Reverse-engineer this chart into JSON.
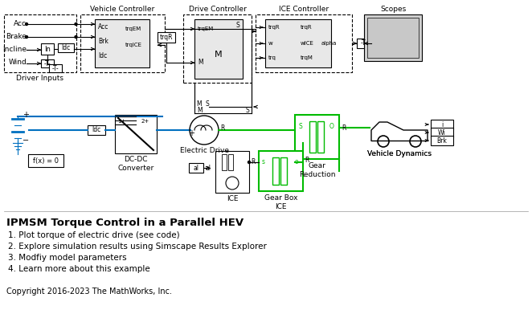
{
  "title": "IPMSM Torque Control in a Parallel HEV",
  "items": [
    "1. Plot torque of electric drive (see code)",
    "2. Explore simulation results using Simscape Results Explorer",
    "3. Modfiy model parameters",
    "4. Learn more about this example"
  ],
  "copyright": "Copyright 2016-2023 The MathWorks, Inc.",
  "bg_color": "#ffffff",
  "green_edge": "#00bb00",
  "blue_line": "#0070c0",
  "gray_block": "#d0d0d0",
  "light_gray": "#e8e8e8"
}
